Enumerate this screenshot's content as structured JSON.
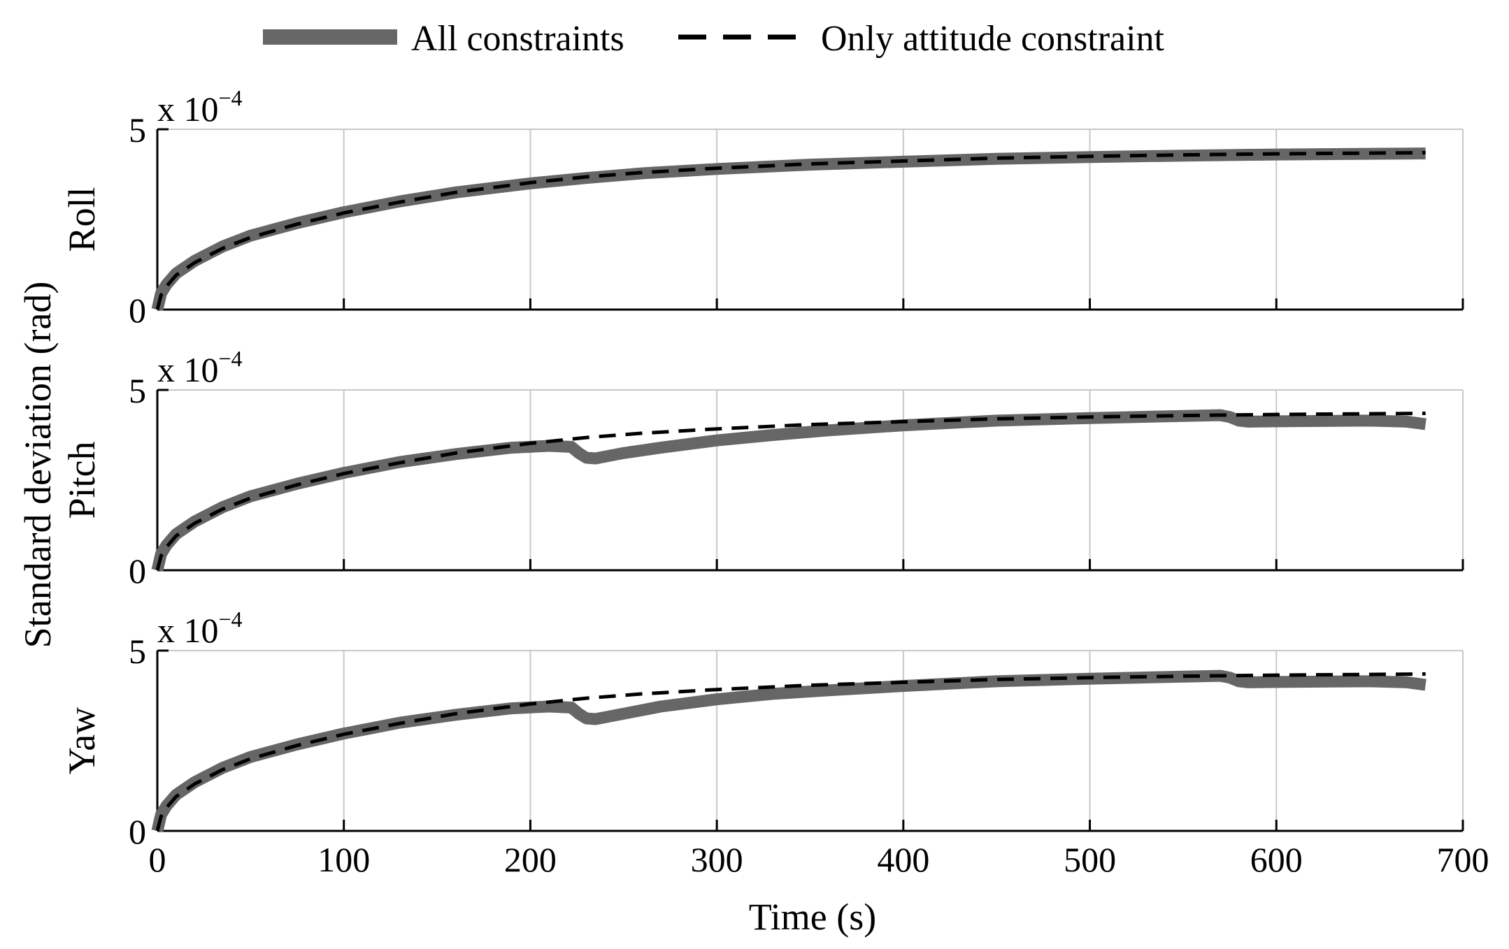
{
  "legend": {
    "all_constraints": "All constraints",
    "only_attitude": "Only attitude constraint"
  },
  "colors": {
    "all_constraints": "#666666",
    "only_attitude": "#000000",
    "grid": "#c8c8c8",
    "axis": "#000000"
  },
  "common": {
    "ylabel": "Standard deviation (rad)",
    "xlabel": "Time (s)",
    "scale_base": "x 10",
    "scale_exp": "−4"
  },
  "chart_data": [
    {
      "type": "line",
      "title": "",
      "ylabel": "Roll",
      "xlabel": "",
      "xlim": [
        0,
        700
      ],
      "ylim": [
        0,
        5
      ],
      "yscale_note": "x 10^-4",
      "xticks": [
        0,
        100,
        200,
        300,
        400,
        500,
        600,
        700
      ],
      "yticks": [
        0,
        5
      ],
      "show_x_tick_labels": false,
      "grid": "vertical",
      "series": [
        {
          "name": "All constraints",
          "x": [
            0,
            2,
            5,
            10,
            20,
            35,
            50,
            75,
            100,
            130,
            160,
            200,
            230,
            260,
            300,
            350,
            400,
            450,
            500,
            550,
            600,
            650,
            680
          ],
          "y": [
            0,
            0.45,
            0.7,
            1.0,
            1.35,
            1.75,
            2.05,
            2.4,
            2.7,
            3.0,
            3.25,
            3.5,
            3.65,
            3.78,
            3.9,
            4.02,
            4.1,
            4.18,
            4.23,
            4.27,
            4.3,
            4.32,
            4.33
          ]
        },
        {
          "name": "Only attitude constraint",
          "x": [
            0,
            2,
            5,
            10,
            20,
            35,
            50,
            75,
            100,
            130,
            160,
            200,
            230,
            260,
            300,
            350,
            400,
            450,
            500,
            550,
            600,
            650,
            680
          ],
          "y": [
            0,
            0.4,
            0.65,
            0.95,
            1.3,
            1.7,
            2.0,
            2.37,
            2.68,
            2.98,
            3.25,
            3.52,
            3.68,
            3.8,
            3.92,
            4.04,
            4.12,
            4.2,
            4.25,
            4.29,
            4.32,
            4.34,
            4.35
          ]
        }
      ]
    },
    {
      "type": "line",
      "title": "",
      "ylabel": "Pitch",
      "xlabel": "",
      "xlim": [
        0,
        700
      ],
      "ylim": [
        0,
        5
      ],
      "yscale_note": "x 10^-4",
      "xticks": [
        0,
        100,
        200,
        300,
        400,
        500,
        600,
        700
      ],
      "yticks": [
        0,
        5
      ],
      "show_x_tick_labels": false,
      "grid": "vertical",
      "series": [
        {
          "name": "All constraints",
          "x": [
            0,
            2,
            5,
            10,
            20,
            35,
            50,
            75,
            100,
            130,
            160,
            190,
            210,
            222,
            226,
            230,
            235,
            250,
            270,
            300,
            330,
            360,
            400,
            450,
            500,
            550,
            570,
            575,
            580,
            585,
            600,
            650,
            670,
            680
          ],
          "y": [
            0,
            0.45,
            0.7,
            1.0,
            1.35,
            1.75,
            2.05,
            2.4,
            2.7,
            3.0,
            3.22,
            3.4,
            3.45,
            3.42,
            3.25,
            3.12,
            3.1,
            3.25,
            3.4,
            3.6,
            3.75,
            3.88,
            4.02,
            4.15,
            4.22,
            4.28,
            4.3,
            4.25,
            4.15,
            4.12,
            4.13,
            4.15,
            4.12,
            4.05
          ]
        },
        {
          "name": "Only attitude constraint",
          "x": [
            0,
            2,
            5,
            10,
            20,
            35,
            50,
            75,
            100,
            130,
            160,
            200,
            230,
            260,
            300,
            350,
            400,
            450,
            500,
            550,
            600,
            650,
            680
          ],
          "y": [
            0,
            0.4,
            0.65,
            0.95,
            1.3,
            1.7,
            2.0,
            2.37,
            2.68,
            2.98,
            3.25,
            3.52,
            3.68,
            3.8,
            3.92,
            4.04,
            4.12,
            4.2,
            4.25,
            4.29,
            4.32,
            4.34,
            4.35
          ]
        }
      ]
    },
    {
      "type": "line",
      "title": "",
      "ylabel": "Yaw",
      "xlabel": "Time (s)",
      "xlim": [
        0,
        700
      ],
      "ylim": [
        0,
        5
      ],
      "yscale_note": "x 10^-4",
      "xticks": [
        0,
        100,
        200,
        300,
        400,
        500,
        600,
        700
      ],
      "yticks": [
        0,
        5
      ],
      "show_x_tick_labels": true,
      "grid": "vertical",
      "series": [
        {
          "name": "All constraints",
          "x": [
            0,
            2,
            5,
            10,
            20,
            35,
            50,
            75,
            100,
            130,
            160,
            190,
            210,
            222,
            226,
            230,
            235,
            250,
            270,
            300,
            330,
            360,
            400,
            450,
            500,
            550,
            570,
            575,
            580,
            585,
            600,
            650,
            670,
            680
          ],
          "y": [
            0,
            0.45,
            0.7,
            1.0,
            1.35,
            1.75,
            2.05,
            2.4,
            2.7,
            3.0,
            3.22,
            3.4,
            3.45,
            3.42,
            3.25,
            3.12,
            3.1,
            3.25,
            3.45,
            3.65,
            3.8,
            3.9,
            4.02,
            4.15,
            4.22,
            4.28,
            4.3,
            4.25,
            4.15,
            4.12,
            4.13,
            4.15,
            4.12,
            4.05
          ]
        },
        {
          "name": "Only attitude constraint",
          "x": [
            0,
            2,
            5,
            10,
            20,
            35,
            50,
            75,
            100,
            130,
            160,
            200,
            230,
            260,
            300,
            350,
            400,
            450,
            500,
            550,
            600,
            650,
            680
          ],
          "y": [
            0,
            0.4,
            0.65,
            0.95,
            1.3,
            1.7,
            2.0,
            2.37,
            2.68,
            2.98,
            3.25,
            3.52,
            3.68,
            3.8,
            3.92,
            4.04,
            4.12,
            4.2,
            4.25,
            4.29,
            4.32,
            4.34,
            4.35
          ]
        }
      ]
    }
  ]
}
